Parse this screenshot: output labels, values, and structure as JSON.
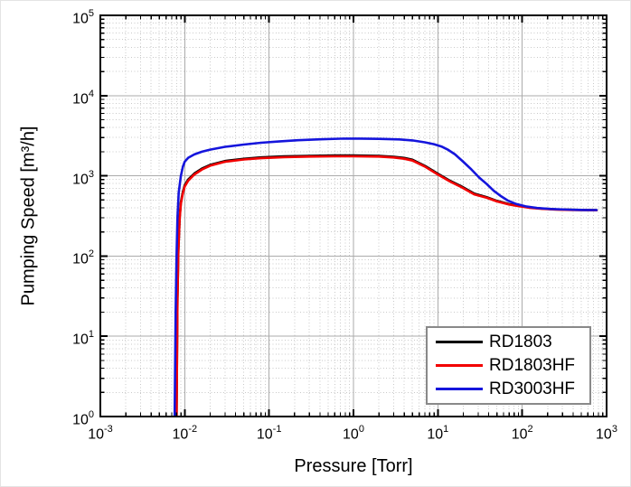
{
  "chart_data": {
    "type": "line",
    "title": "",
    "xlabel": "Pressure [Torr]",
    "ylabel": "Pumping Speed [m³/h]",
    "x_scale": "log",
    "y_scale": "log",
    "x_log_range": [
      -3,
      3
    ],
    "y_log_range": [
      0,
      5
    ],
    "x_tick_exponents": [
      -3,
      -2,
      -1,
      0,
      1,
      2,
      3
    ],
    "y_tick_exponents": [
      0,
      1,
      2,
      3,
      4,
      5
    ],
    "grid": {
      "major": true,
      "minor": true,
      "minor_style": "dotted"
    },
    "legend_position": "lower right",
    "style": {
      "frame_color": "#000000",
      "major_grid_color": "#ababab",
      "minor_grid_color": "#c9c9c9",
      "background": "#ffffff"
    },
    "series": [
      {
        "name": "RD1803",
        "color": "#000000",
        "points": [
          [
            0.008,
            1
          ],
          [
            0.0081,
            6
          ],
          [
            0.0082,
            30
          ],
          [
            0.0084,
            120
          ],
          [
            0.0087,
            300
          ],
          [
            0.009,
            470
          ],
          [
            0.0095,
            630
          ],
          [
            0.01,
            760
          ],
          [
            0.011,
            900
          ],
          [
            0.013,
            1070
          ],
          [
            0.016,
            1230
          ],
          [
            0.02,
            1370
          ],
          [
            0.03,
            1530
          ],
          [
            0.05,
            1630
          ],
          [
            0.08,
            1695
          ],
          [
            0.15,
            1745
          ],
          [
            0.3,
            1775
          ],
          [
            0.6,
            1790
          ],
          [
            1,
            1790
          ],
          [
            2,
            1775
          ],
          [
            3,
            1730
          ],
          [
            4,
            1670
          ],
          [
            5,
            1585
          ],
          [
            7,
            1335
          ],
          [
            10,
            1065
          ],
          [
            14,
            865
          ],
          [
            19,
            740
          ],
          [
            27,
            600
          ],
          [
            38,
            542
          ],
          [
            50,
            488
          ],
          [
            70,
            444
          ],
          [
            90,
            424
          ],
          [
            120,
            404
          ],
          [
            170,
            391
          ],
          [
            250,
            382
          ],
          [
            400,
            377
          ],
          [
            600,
            375
          ],
          [
            760,
            374
          ]
        ]
      },
      {
        "name": "RD1803HF",
        "color": "#f20000",
        "points": [
          [
            0.008,
            1
          ],
          [
            0.0081,
            5
          ],
          [
            0.0082,
            28
          ],
          [
            0.0084,
            114
          ],
          [
            0.0087,
            288
          ],
          [
            0.009,
            452
          ],
          [
            0.0095,
            608
          ],
          [
            0.01,
            736
          ],
          [
            0.011,
            872
          ],
          [
            0.013,
            1040
          ],
          [
            0.016,
            1198
          ],
          [
            0.02,
            1338
          ],
          [
            0.03,
            1498
          ],
          [
            0.05,
            1598
          ],
          [
            0.08,
            1660
          ],
          [
            0.15,
            1708
          ],
          [
            0.3,
            1738
          ],
          [
            0.6,
            1752
          ],
          [
            1,
            1752
          ],
          [
            2,
            1738
          ],
          [
            3,
            1694
          ],
          [
            4,
            1634
          ],
          [
            5,
            1550
          ],
          [
            7,
            1305
          ],
          [
            10,
            1040
          ],
          [
            14,
            846
          ],
          [
            19,
            724
          ],
          [
            27,
            588
          ],
          [
            38,
            532
          ],
          [
            50,
            480
          ],
          [
            70,
            438
          ],
          [
            90,
            419
          ],
          [
            120,
            400
          ],
          [
            170,
            388
          ],
          [
            250,
            380
          ],
          [
            400,
            375
          ],
          [
            600,
            373
          ],
          [
            760,
            372
          ]
        ]
      },
      {
        "name": "RD3003HF",
        "color": "#1515dc",
        "points": [
          [
            0.0076,
            1
          ],
          [
            0.0077,
            4
          ],
          [
            0.0078,
            20
          ],
          [
            0.008,
            100
          ],
          [
            0.0082,
            300
          ],
          [
            0.0085,
            620
          ],
          [
            0.009,
            1000
          ],
          [
            0.0095,
            1300
          ],
          [
            0.01,
            1500
          ],
          [
            0.011,
            1680
          ],
          [
            0.013,
            1850
          ],
          [
            0.016,
            2000
          ],
          [
            0.02,
            2120
          ],
          [
            0.03,
            2300
          ],
          [
            0.05,
            2450
          ],
          [
            0.08,
            2580
          ],
          [
            0.13,
            2680
          ],
          [
            0.22,
            2780
          ],
          [
            0.4,
            2850
          ],
          [
            0.7,
            2900
          ],
          [
            1.2,
            2910
          ],
          [
            2,
            2890
          ],
          [
            3.5,
            2840
          ],
          [
            5,
            2760
          ],
          [
            7,
            2620
          ],
          [
            9,
            2480
          ],
          [
            11,
            2320
          ],
          [
            13,
            2130
          ],
          [
            16,
            1850
          ],
          [
            20,
            1500
          ],
          [
            25,
            1200
          ],
          [
            31,
            950
          ],
          [
            38,
            790
          ],
          [
            46,
            650
          ],
          [
            55,
            565
          ],
          [
            68,
            490
          ],
          [
            85,
            445
          ],
          [
            110,
            416
          ],
          [
            150,
            397
          ],
          [
            220,
            386
          ],
          [
            350,
            379
          ],
          [
            550,
            375
          ],
          [
            760,
            374
          ]
        ]
      }
    ]
  }
}
